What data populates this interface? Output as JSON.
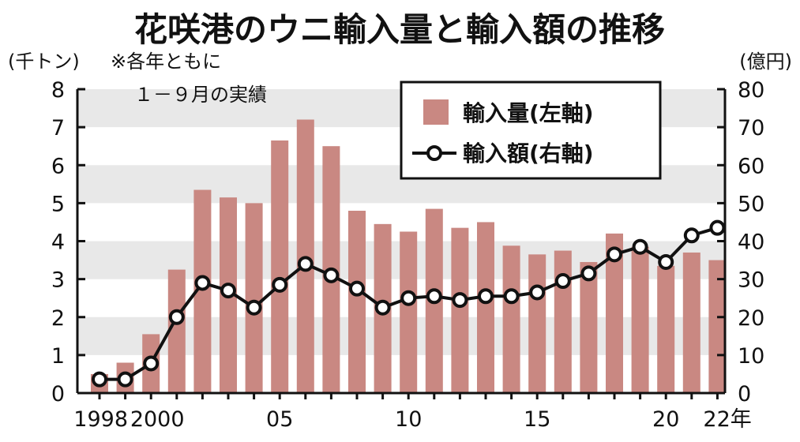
{
  "chart_data": {
    "type": "bar",
    "title": "花咲港のウニ輸入量と輸入額の推移",
    "note": [
      "※各年ともに",
      "１－９月の実績"
    ],
    "left_axis": {
      "unit_label": "(千トン)",
      "ylim": [
        0,
        8
      ],
      "ticks": [
        "0",
        "1",
        "2",
        "3",
        "4",
        "5",
        "6",
        "7",
        "8"
      ]
    },
    "right_axis": {
      "unit_label": "(億円)",
      "ylim": [
        0,
        80
      ],
      "ticks": [
        "0",
        "10",
        "20",
        "30",
        "40",
        "50",
        "60",
        "70",
        "80"
      ]
    },
    "x_tick_labels": [
      "1998",
      "2000",
      "05",
      "10",
      "15",
      "20",
      "22年"
    ],
    "x_tick_years": [
      1998,
      2000,
      2005,
      2010,
      2015,
      2020,
      2022
    ],
    "grid": "alternating horizontal bands",
    "legend": {
      "placement": "top-right",
      "bar_label": "輸入量(左軸)",
      "line_label": "輸入額(右軸)"
    },
    "years": [
      1998,
      1999,
      2000,
      2001,
      2002,
      2003,
      2004,
      2005,
      2006,
      2007,
      2008,
      2009,
      2010,
      2011,
      2012,
      2013,
      2014,
      2015,
      2016,
      2017,
      2018,
      2019,
      2020,
      2021,
      2022
    ],
    "series": [
      {
        "name": "輸入量(左軸)",
        "type": "bar",
        "axis": "left",
        "values": [
          0.5,
          0.8,
          1.55,
          3.25,
          5.35,
          5.15,
          5.0,
          6.65,
          7.2,
          6.5,
          4.8,
          4.45,
          4.25,
          4.85,
          4.35,
          4.5,
          3.88,
          3.65,
          3.75,
          3.45,
          4.2,
          3.85,
          3.35,
          3.7,
          3.5
        ]
      },
      {
        "name": "輸入額(右軸)",
        "type": "line",
        "axis": "right",
        "values": [
          3.6,
          3.6,
          7.8,
          20,
          29,
          27,
          22.5,
          28.5,
          34,
          31,
          27.5,
          22.5,
          25,
          25.5,
          24.5,
          25.5,
          25.5,
          26.5,
          29.5,
          31.5,
          36.5,
          38.5,
          34.5,
          41.5,
          43.5
        ]
      }
    ],
    "colors": {
      "bar": "#c98882",
      "line": "#111111",
      "marker_fill": "#ffffff",
      "band": "#e8e8e8"
    }
  }
}
